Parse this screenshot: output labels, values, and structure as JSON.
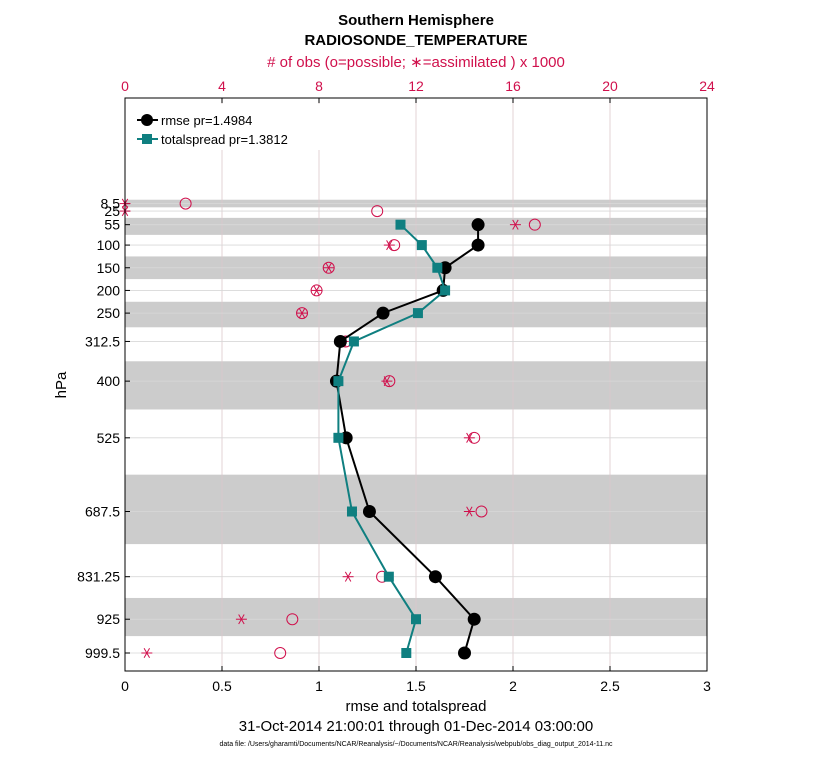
{
  "chart_data": {
    "type": "line",
    "title": "Southern Hemisphere",
    "subtitle": "RADIOSONDE_TEMPERATURE",
    "top_axis_label": "# of obs (o=possible; ∗=assimilated ) x 1000",
    "xlabel": "rmse and totalspread",
    "ylabel": "hPa",
    "date_range": "31-Oct-2014 21:00:01 through 01-Dec-2014 03:00:00",
    "footnote": "data file: /Users/gharamti/Documents/NCAR/Reanalysis/~/Documents/NCAR/Reanalysis/webpub/obs_diag_output_2014-11.nc",
    "xlim": [
      0,
      3
    ],
    "x_ticks": [
      "0",
      "0.5",
      "1",
      "1.5",
      "2",
      "2.5",
      "3"
    ],
    "top_xlim": [
      0,
      24
    ],
    "top_ticks": [
      "0",
      "4",
      "8",
      "12",
      "16",
      "20",
      "24"
    ],
    "levels": [
      8.5,
      25,
      55,
      100,
      150,
      200,
      250,
      312.5,
      400,
      525,
      687.5,
      831.25,
      925,
      999.5
    ],
    "level_labels": [
      "8.5",
      "25",
      "55",
      "100",
      "150",
      "200",
      "250",
      "312.5",
      "400",
      "525",
      "687.5",
      "831.25",
      "925",
      "999.5"
    ],
    "series": [
      {
        "name": "rmse pr=1.4984",
        "color": "#000000",
        "marker": "circle",
        "values": [
          null,
          null,
          1.82,
          1.82,
          1.65,
          1.64,
          1.33,
          1.11,
          1.09,
          1.14,
          1.26,
          1.6,
          1.8,
          1.75
        ]
      },
      {
        "name": "totalspread pr=1.3812",
        "color": "#0f7f80",
        "marker": "square",
        "values": [
          null,
          null,
          1.42,
          1.53,
          1.61,
          1.65,
          1.51,
          1.18,
          1.1,
          1.1,
          1.17,
          1.36,
          1.5,
          1.45
        ]
      }
    ],
    "obs_possible": [
      2.5,
      10.4,
      16.9,
      11.1,
      8.4,
      7.9,
      7.3,
      9.1,
      10.9,
      14.4,
      14.7,
      10.6,
      6.9,
      6.4
    ],
    "obs_assimilated": [
      0.0,
      0.0,
      16.1,
      10.9,
      8.4,
      7.9,
      7.3,
      9.0,
      10.8,
      14.2,
      14.2,
      9.2,
      4.8,
      0.9
    ],
    "colors": {
      "obs": "#d0104c",
      "band": "#cccccc",
      "grid": "#dcc8cc",
      "axis": "#000000"
    }
  }
}
